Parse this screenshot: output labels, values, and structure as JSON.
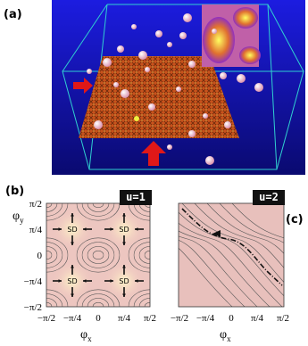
{
  "panel_a": {
    "label": "(a)"
  },
  "panel_b": {
    "label": "(b)",
    "badge": "u=1",
    "y_axis_label": {
      "symbol": "φ",
      "subscript": "y"
    },
    "x_axis_label": {
      "symbol": "φ",
      "subscript": "x"
    },
    "y_ticks": [
      "π/2",
      "π/4",
      "0",
      "−π/4",
      "−π/2"
    ],
    "x_ticks": [
      "−π/2",
      "−π/4",
      "0",
      "π/4",
      "π/2"
    ],
    "fixed_points": [
      "SD",
      "SD",
      "SD",
      "SD"
    ]
  },
  "panel_c": {
    "label": "(c)",
    "badge": "u=2",
    "x_axis_label": {
      "symbol": "φ",
      "subscript": "x"
    },
    "x_ticks": [
      "−π/2",
      "−π/4",
      "0",
      "π/4",
      "π/2"
    ]
  }
}
